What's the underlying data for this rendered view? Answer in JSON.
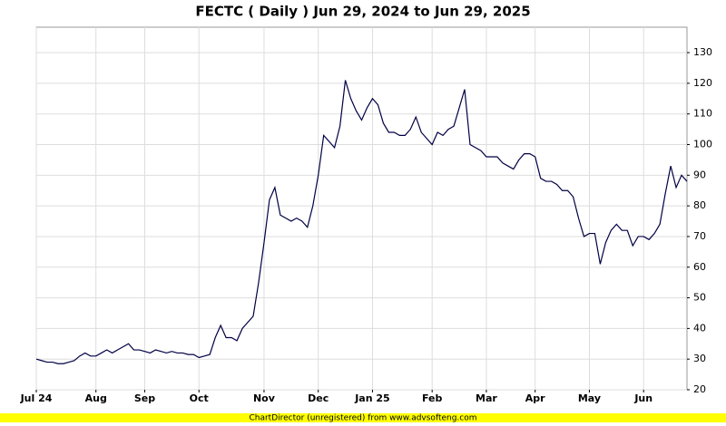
{
  "chart_data": {
    "type": "line",
    "title": "FECTC ( Daily ) Jun 29, 2024 to Jun 29, 2025",
    "footer": "ChartDirector (unregistered) from www.advsofteng.com",
    "categories": [
      "Jul 24",
      null,
      null,
      null,
      null,
      null,
      null,
      null,
      null,
      null,
      null,
      "Aug",
      null,
      null,
      null,
      null,
      null,
      null,
      null,
      null,
      "Sep",
      null,
      null,
      null,
      null,
      null,
      null,
      null,
      null,
      null,
      "Oct",
      null,
      null,
      null,
      null,
      null,
      null,
      null,
      null,
      null,
      null,
      null,
      "Nov",
      null,
      null,
      null,
      null,
      null,
      null,
      null,
      null,
      null,
      "Dec",
      null,
      null,
      null,
      null,
      null,
      null,
      null,
      null,
      null,
      "Jan 25",
      null,
      null,
      null,
      null,
      null,
      null,
      null,
      null,
      null,
      null,
      "Feb",
      null,
      null,
      null,
      null,
      null,
      null,
      null,
      null,
      null,
      "Mar",
      null,
      null,
      null,
      null,
      null,
      null,
      null,
      null,
      "Apr",
      null,
      null,
      null,
      null,
      null,
      null,
      null,
      null,
      null,
      "May",
      null,
      null,
      null,
      null,
      null,
      null,
      null,
      null,
      null,
      "Jun",
      null,
      null,
      null,
      null,
      null,
      null,
      null,
      null
    ],
    "series": [
      {
        "name": "FECTC",
        "color": "#000044",
        "values": [
          30,
          29.5,
          29,
          29,
          28.5,
          28.5,
          29,
          29.5,
          31,
          32,
          31,
          31,
          32,
          33,
          32,
          33,
          34,
          35,
          33,
          33,
          32.5,
          32,
          33,
          32.5,
          32,
          32.5,
          32,
          32,
          31.5,
          31.5,
          30.5,
          31,
          31.5,
          37,
          41,
          37,
          37,
          36,
          40,
          42,
          44,
          55,
          68,
          82,
          86,
          77,
          76,
          75,
          76,
          75,
          73,
          80,
          90,
          103,
          101,
          99,
          106,
          121,
          115,
          111,
          108,
          112,
          115,
          113,
          107,
          104,
          104,
          103,
          103,
          105,
          109,
          104,
          102,
          100,
          104,
          103,
          105,
          106,
          112,
          118,
          100,
          99,
          98,
          96,
          96,
          96,
          94,
          93,
          92,
          95,
          97,
          97,
          96,
          89,
          88,
          88,
          87,
          85,
          85,
          83,
          76,
          70,
          71,
          71,
          61,
          68,
          72,
          74,
          72,
          72,
          67,
          70,
          70,
          69,
          71,
          74,
          84,
          93,
          86,
          90,
          88
        ]
      }
    ],
    "ylim": [
      20,
      138.3
    ],
    "yticks": [
      20,
      30,
      40,
      50,
      60,
      70,
      80,
      90,
      100,
      110,
      120,
      130
    ],
    "grid": true
  }
}
